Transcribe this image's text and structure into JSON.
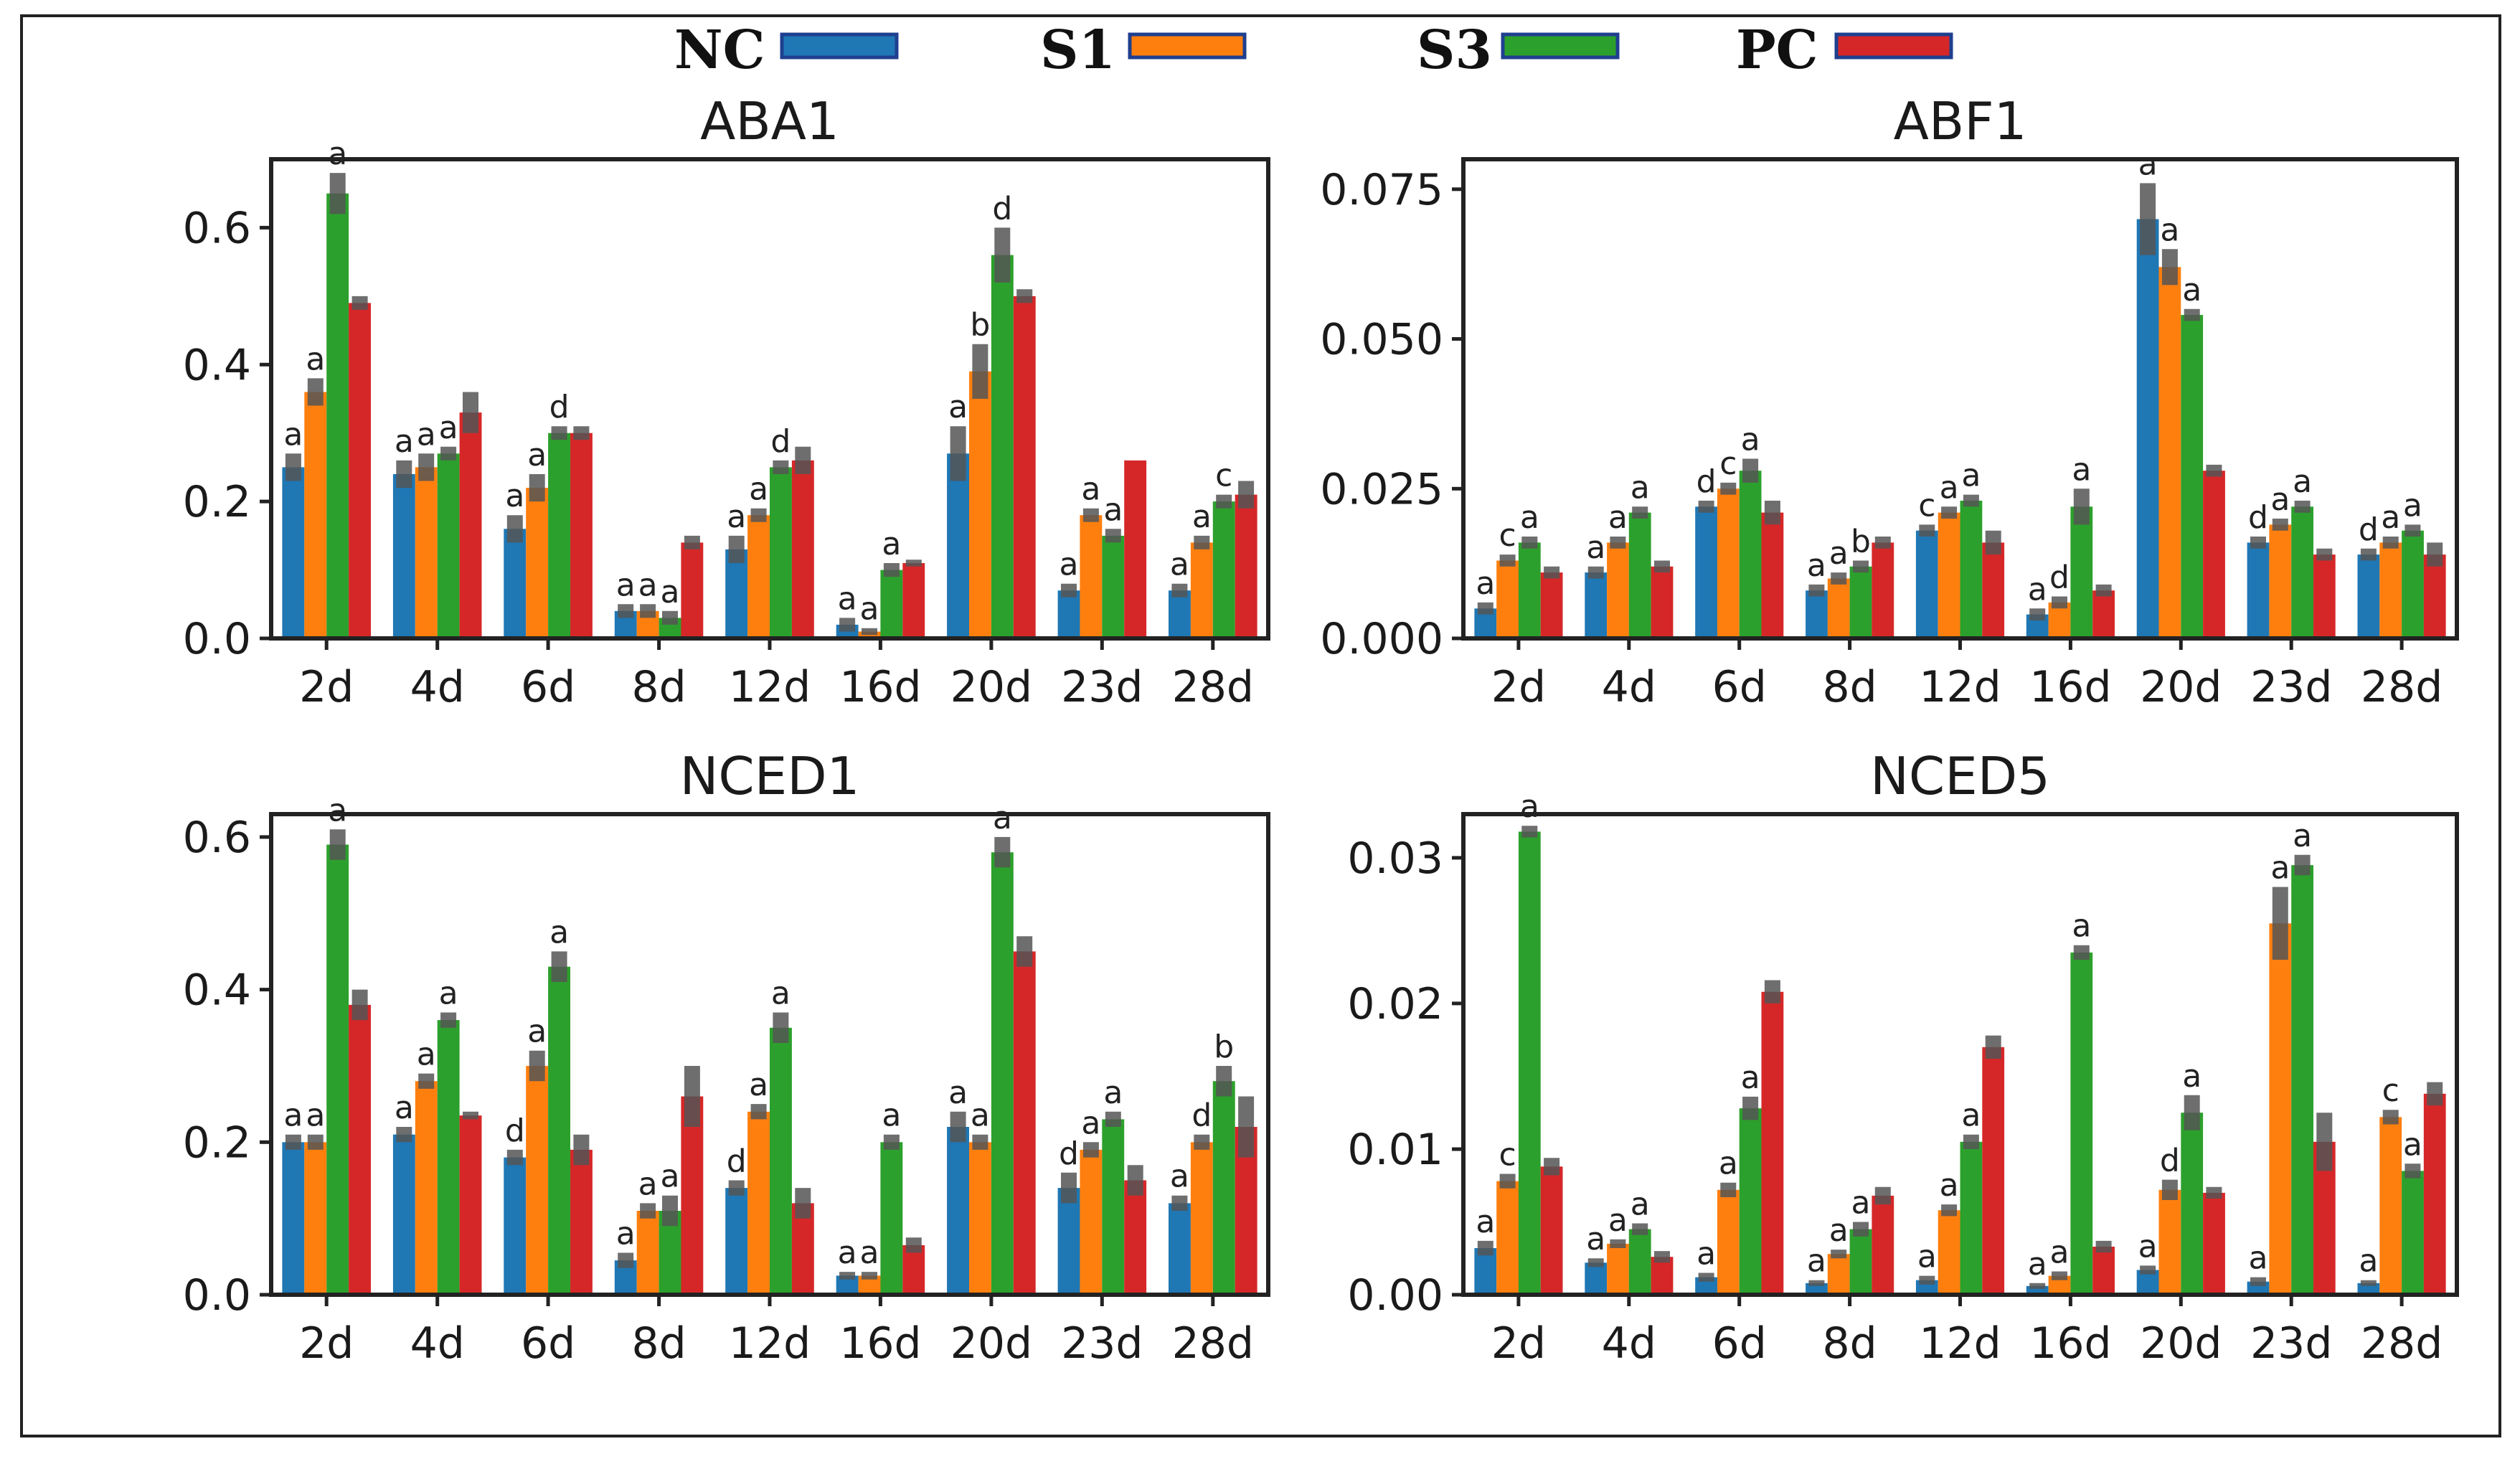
{
  "legend": [
    {
      "name": "NC",
      "color": "#1f77b4"
    },
    {
      "name": "S1",
      "color": "#ff7f0e"
    },
    {
      "name": "S3",
      "color": "#2ca02c"
    },
    {
      "name": "PC",
      "color": "#d62728"
    }
  ],
  "chart_data": [
    {
      "type": "bar",
      "title": "ABA1",
      "categories": [
        "2d",
        "4d",
        "6d",
        "8d",
        "12d",
        "16d",
        "20d",
        "23d",
        "28d"
      ],
      "ylim": [
        0,
        0.7
      ],
      "yticks": [
        "0.0",
        "0.2",
        "0.4",
        "0.6"
      ],
      "ytick_values": [
        0,
        0.2,
        0.4,
        0.6
      ],
      "series": [
        {
          "name": "NC",
          "values": [
            0.25,
            0.24,
            0.16,
            0.04,
            0.13,
            0.02,
            0.27,
            0.07,
            0.07
          ],
          "errors": [
            0.02,
            0.02,
            0.02,
            0.01,
            0.02,
            0.01,
            0.04,
            0.01,
            0.01
          ],
          "labels": [
            "a",
            "a",
            "a",
            "a",
            "a",
            "a",
            "a",
            "a",
            "a"
          ]
        },
        {
          "name": "S1",
          "values": [
            0.36,
            0.25,
            0.22,
            0.04,
            0.18,
            0.01,
            0.39,
            0.18,
            0.14
          ],
          "errors": [
            0.02,
            0.02,
            0.02,
            0.01,
            0.01,
            0.005,
            0.04,
            0.01,
            0.01
          ],
          "labels": [
            "a",
            "a",
            "a",
            "a",
            "a",
            "a",
            "b",
            "a",
            "a"
          ]
        },
        {
          "name": "S3",
          "values": [
            0.65,
            0.27,
            0.3,
            0.03,
            0.25,
            0.1,
            0.56,
            0.15,
            0.2
          ],
          "errors": [
            0.03,
            0.01,
            0.01,
            0.01,
            0.01,
            0.01,
            0.04,
            0.01,
            0.01
          ],
          "labels": [
            "a",
            "a",
            "d",
            "a",
            "d",
            "a",
            "d",
            "a",
            "c"
          ]
        },
        {
          "name": "PC",
          "values": [
            0.49,
            0.33,
            0.3,
            0.14,
            0.26,
            0.11,
            0.5,
            0.26,
            0.21
          ],
          "errors": [
            0.01,
            0.03,
            0.01,
            0.01,
            0.02,
            0.005,
            0.01,
            0.0,
            0.02
          ],
          "labels": [
            "",
            "",
            "",
            "",
            "",
            "",
            "",
            "",
            ""
          ]
        }
      ]
    },
    {
      "type": "bar",
      "title": "ABF1",
      "categories": [
        "2d",
        "4d",
        "6d",
        "8d",
        "12d",
        "16d",
        "20d",
        "23d",
        "28d"
      ],
      "ylim": [
        0,
        0.08
      ],
      "yticks": [
        "0.000",
        "0.025",
        "0.050",
        "0.075"
      ],
      "ytick_values": [
        0,
        0.025,
        0.05,
        0.075
      ],
      "series": [
        {
          "name": "NC",
          "values": [
            0.005,
            0.011,
            0.022,
            0.008,
            0.018,
            0.004,
            0.07,
            0.016,
            0.014
          ],
          "errors": [
            0.001,
            0.001,
            0.001,
            0.001,
            0.001,
            0.001,
            0.006,
            0.001,
            0.001
          ],
          "labels": [
            "a",
            "a",
            "d",
            "a",
            "c",
            "a",
            "a",
            "d",
            "d"
          ]
        },
        {
          "name": "S1",
          "values": [
            0.013,
            0.016,
            0.025,
            0.01,
            0.021,
            0.006,
            0.062,
            0.019,
            0.016
          ],
          "errors": [
            0.001,
            0.001,
            0.001,
            0.001,
            0.001,
            0.001,
            0.003,
            0.001,
            0.001
          ],
          "labels": [
            "c",
            "a",
            "c",
            "a",
            "a",
            "d",
            "a",
            "a",
            "a"
          ]
        },
        {
          "name": "S3",
          "values": [
            0.016,
            0.021,
            0.028,
            0.012,
            0.023,
            0.022,
            0.054,
            0.022,
            0.018
          ],
          "errors": [
            0.001,
            0.001,
            0.002,
            0.001,
            0.001,
            0.003,
            0.001,
            0.001,
            0.001
          ],
          "labels": [
            "a",
            "a",
            "a",
            "b",
            "a",
            "a",
            "a",
            "a",
            "a"
          ]
        },
        {
          "name": "PC",
          "values": [
            0.011,
            0.012,
            0.021,
            0.016,
            0.016,
            0.008,
            0.028,
            0.014,
            0.014
          ],
          "errors": [
            0.001,
            0.001,
            0.002,
            0.001,
            0.002,
            0.001,
            0.001,
            0.001,
            0.002
          ],
          "labels": [
            "",
            "",
            "",
            "",
            "",
            "",
            "",
            "",
            ""
          ]
        }
      ]
    },
    {
      "type": "bar",
      "title": "NCED1",
      "categories": [
        "2d",
        "4d",
        "6d",
        "8d",
        "12d",
        "16d",
        "20d",
        "23d",
        "28d"
      ],
      "ylim": [
        0,
        0.63
      ],
      "yticks": [
        "0.0",
        "0.2",
        "0.4",
        "0.6"
      ],
      "ytick_values": [
        0,
        0.2,
        0.4,
        0.6
      ],
      "series": [
        {
          "name": "NC",
          "values": [
            0.2,
            0.21,
            0.18,
            0.045,
            0.14,
            0.025,
            0.22,
            0.14,
            0.12
          ],
          "errors": [
            0.01,
            0.01,
            0.01,
            0.01,
            0.01,
            0.005,
            0.02,
            0.02,
            0.01
          ],
          "labels": [
            "a",
            "a",
            "d",
            "a",
            "d",
            "a",
            "a",
            "d",
            "a"
          ]
        },
        {
          "name": "S1",
          "values": [
            0.2,
            0.28,
            0.3,
            0.11,
            0.24,
            0.025,
            0.2,
            0.19,
            0.2
          ],
          "errors": [
            0.01,
            0.01,
            0.02,
            0.01,
            0.01,
            0.005,
            0.01,
            0.01,
            0.01
          ],
          "labels": [
            "a",
            "a",
            "a",
            "a",
            "a",
            "a",
            "a",
            "a",
            "d"
          ]
        },
        {
          "name": "S3",
          "values": [
            0.59,
            0.36,
            0.43,
            0.11,
            0.35,
            0.2,
            0.58,
            0.23,
            0.28
          ],
          "errors": [
            0.02,
            0.01,
            0.02,
            0.02,
            0.02,
            0.01,
            0.02,
            0.01,
            0.02
          ],
          "labels": [
            "a",
            "a",
            "a",
            "a",
            "a",
            "a",
            "a",
            "a",
            "b"
          ]
        },
        {
          "name": "PC",
          "values": [
            0.38,
            0.235,
            0.19,
            0.26,
            0.12,
            0.065,
            0.45,
            0.15,
            0.22
          ],
          "errors": [
            0.02,
            0.005,
            0.02,
            0.04,
            0.02,
            0.01,
            0.02,
            0.02,
            0.04
          ],
          "labels": [
            "",
            "",
            "",
            "",
            "",
            "",
            "",
            "",
            ""
          ]
        }
      ]
    },
    {
      "type": "bar",
      "title": "NCED5",
      "categories": [
        "2d",
        "4d",
        "6d",
        "8d",
        "12d",
        "16d",
        "20d",
        "23d",
        "28d"
      ],
      "ylim": [
        0,
        0.033
      ],
      "yticks": [
        "0.00",
        "0.01",
        "0.02",
        "0.03"
      ],
      "ytick_values": [
        0,
        0.01,
        0.02,
        0.03
      ],
      "series": [
        {
          "name": "NC",
          "values": [
            0.0032,
            0.0022,
            0.0012,
            0.0008,
            0.001,
            0.0006,
            0.0017,
            0.0009,
            0.0008
          ],
          "errors": [
            0.0005,
            0.0003,
            0.0003,
            0.0002,
            0.0003,
            0.0002,
            0.0003,
            0.0003,
            0.0002
          ],
          "labels": [
            "a",
            "a",
            "a",
            "a",
            "a",
            "a",
            "a",
            "a",
            "a"
          ]
        },
        {
          "name": "S1",
          "values": [
            0.0078,
            0.0035,
            0.0072,
            0.0028,
            0.0058,
            0.0013,
            0.0072,
            0.0255,
            0.0122
          ],
          "errors": [
            0.0005,
            0.0003,
            0.0005,
            0.0003,
            0.0004,
            0.0003,
            0.0007,
            0.0025,
            0.0005
          ],
          "labels": [
            "c",
            "a",
            "a",
            "a",
            "a",
            "a",
            "d",
            "a",
            "c"
          ]
        },
        {
          "name": "S3",
          "values": [
            0.0318,
            0.0045,
            0.0128,
            0.0045,
            0.0105,
            0.0235,
            0.0125,
            0.0295,
            0.0085
          ],
          "errors": [
            0.0004,
            0.0004,
            0.0008,
            0.0005,
            0.0005,
            0.0005,
            0.0012,
            0.0007,
            0.0005
          ],
          "labels": [
            "a",
            "a",
            "a",
            "a",
            "a",
            "a",
            "a",
            "a",
            "a"
          ]
        },
        {
          "name": "PC",
          "values": [
            0.0088,
            0.0026,
            0.0208,
            0.0068,
            0.017,
            0.0033,
            0.007,
            0.0105,
            0.0138
          ],
          "errors": [
            0.0006,
            0.0004,
            0.0008,
            0.0006,
            0.0008,
            0.0004,
            0.0004,
            0.002,
            0.0008
          ],
          "labels": [
            "",
            "",
            "",
            "",
            "",
            "",
            "",
            "",
            ""
          ]
        }
      ]
    }
  ]
}
